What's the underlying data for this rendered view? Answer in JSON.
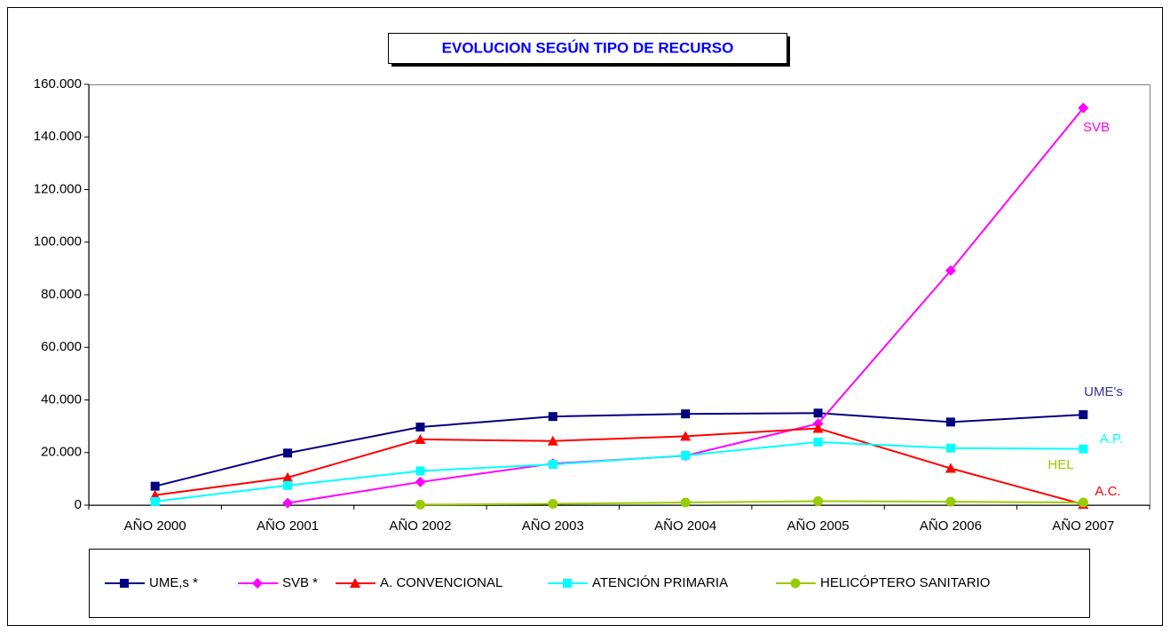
{
  "chart_data": {
    "type": "line",
    "title": "EVOLUCION SEGÚN TIPO DE RECURSO",
    "categories": [
      "AÑO 2000",
      "AÑO 2001",
      "AÑO 2002",
      "AÑO 2003",
      "AÑO 2004",
      "AÑO 2005",
      "AÑO 2006",
      "AÑO 2007"
    ],
    "series": [
      {
        "name": "UME,s *",
        "color": "#000080",
        "marker": "square",
        "values": [
          7200,
          19800,
          29700,
          33700,
          34700,
          35000,
          31600,
          34400
        ]
      },
      {
        "name": "SVB *",
        "color": "#ff00ff",
        "marker": "diamond",
        "values": [
          null,
          800,
          8800,
          15800,
          18800,
          31000,
          89200,
          151000
        ]
      },
      {
        "name": "A. CONVENCIONAL",
        "color": "#ff0000",
        "marker": "triangle",
        "values": [
          3800,
          10500,
          25000,
          24400,
          26200,
          29200,
          14000,
          300
        ]
      },
      {
        "name": "ATENCIÓN PRIMARIA",
        "color": "#00ffff",
        "marker": "square",
        "values": [
          1400,
          7500,
          13000,
          15500,
          18900,
          24000,
          21700,
          21400
        ]
      },
      {
        "name": "HELICÓPTERO SANITARIO",
        "color": "#99cc00",
        "marker": "circle",
        "values": [
          null,
          null,
          200,
          500,
          1000,
          1500,
          1300,
          1000
        ]
      }
    ],
    "annotations": [
      {
        "text": "SVB",
        "color": "#ff00ff"
      },
      {
        "text": "UME's",
        "color": "#333399"
      },
      {
        "text": "A.P.",
        "color": "#00ffff"
      },
      {
        "text": "HEL",
        "color": "#99cc00"
      },
      {
        "text": "A.C.",
        "color": "#ff0000"
      }
    ],
    "ylim": [
      0,
      160000
    ],
    "yticks": [
      0,
      {
        "value": 20000,
        "label": "20.000"
      },
      {
        "value": 40000,
        "label": "40.000"
      },
      {
        "value": 60000,
        "label": "60.000"
      },
      {
        "value": 80000,
        "label": "80.000"
      },
      {
        "value": 100000,
        "label": "100.000"
      },
      {
        "value": 120000,
        "label": "120.000"
      },
      {
        "value": 140000,
        "label": "140.000"
      },
      {
        "value": 160000,
        "label": "160.000"
      }
    ],
    "legend": "bottom"
  }
}
